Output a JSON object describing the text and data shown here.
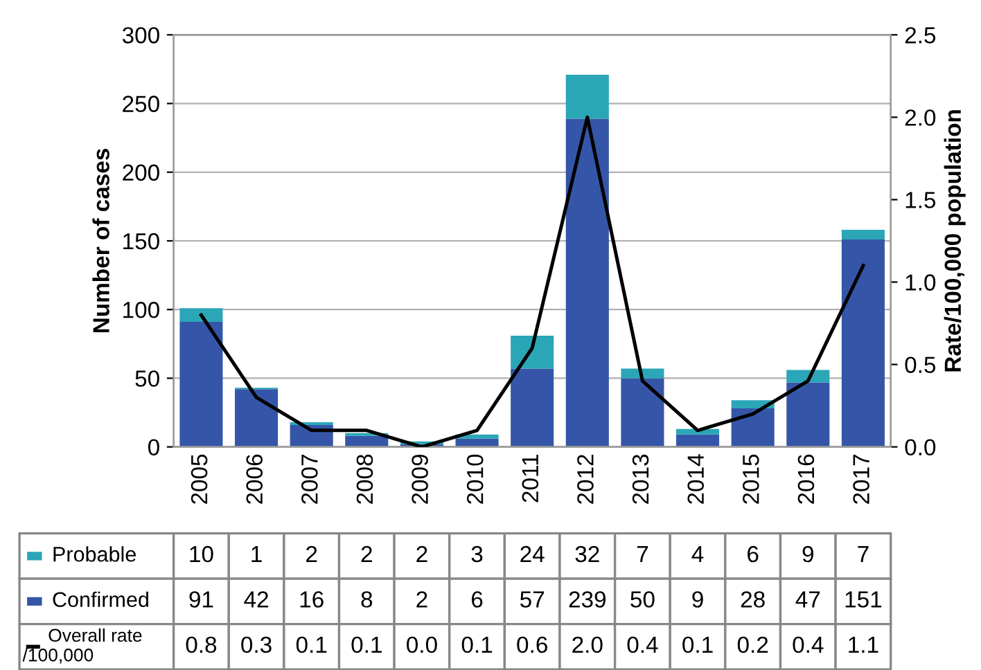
{
  "chart_data": {
    "type": "bar",
    "stacked": true,
    "ylabel": "Number of cases",
    "y2label": "Rate/100,000 population",
    "categories": [
      "2005",
      "2006",
      "2007",
      "2008",
      "2009",
      "2010",
      "2011",
      "2012",
      "2013",
      "2014",
      "2015",
      "2016",
      "2017"
    ],
    "series": [
      {
        "name": "Confirmed",
        "color": "#3556a8",
        "values": [
          91,
          42,
          16,
          8,
          2,
          6,
          57,
          239,
          50,
          9,
          28,
          47,
          151
        ]
      },
      {
        "name": "Probable",
        "color": "#2ba6b7",
        "values": [
          10,
          1,
          2,
          2,
          2,
          3,
          24,
          32,
          7,
          4,
          6,
          9,
          7
        ]
      },
      {
        "name": "Overall rate /100,000",
        "type": "line",
        "axis": "y2",
        "color": "#000000",
        "values": [
          0.8,
          0.3,
          0.1,
          0.1,
          0.0,
          0.1,
          0.6,
          2.0,
          0.4,
          0.1,
          0.2,
          0.4,
          1.1
        ],
        "value_labels": [
          "0.8",
          "0.3",
          "0.1",
          "0.1",
          "0.0",
          "0.1",
          "0.6",
          "2.0",
          "0.4",
          "0.1",
          "0.2",
          "0.4",
          "1.1"
        ]
      }
    ],
    "ylim": [
      0,
      300
    ],
    "yticks": [
      0,
      50,
      100,
      150,
      200,
      250,
      300
    ],
    "y2lim": [
      0,
      2.5
    ],
    "y2ticks": [
      {
        "value": 0,
        "label": "0.0"
      },
      {
        "value": 0.5,
        "label": "0.5"
      },
      {
        "value": 1,
        "label": "1.0"
      },
      {
        "value": 1.5,
        "label": "1.5"
      },
      {
        "value": 2,
        "label": "2.0"
      },
      {
        "value": 2.5,
        "label": "2.5"
      }
    ],
    "grid": "y",
    "data_labels": true,
    "legend": "bottom"
  }
}
